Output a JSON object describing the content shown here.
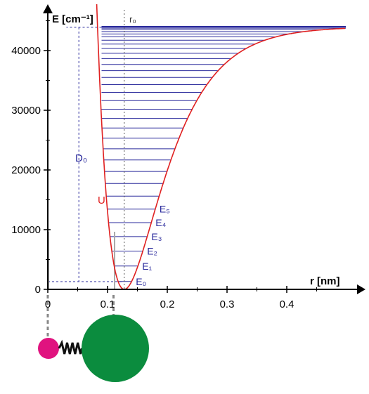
{
  "chart_data": {
    "type": "line",
    "title": "",
    "xlabel": "r [nm]",
    "ylabel": "E [cm⁻¹]",
    "xlim": [
      0,
      0.52
    ],
    "ylim": [
      0,
      46000
    ],
    "xticks": [
      {
        "value": 0,
        "label": "0"
      },
      {
        "value": 0.1,
        "label": "0.1"
      },
      {
        "value": 0.2,
        "label": "0.2"
      },
      {
        "value": 0.3,
        "label": "0.3"
      },
      {
        "value": 0.4,
        "label": "0.4"
      }
    ],
    "yticks": [
      {
        "value": 0,
        "label": "0"
      },
      {
        "value": 10000,
        "label": "10000"
      },
      {
        "value": 20000,
        "label": "20000"
      },
      {
        "value": 30000,
        "label": "30000"
      },
      {
        "value": 40000,
        "label": "40000"
      }
    ],
    "potential": {
      "name": "U",
      "color": "#e02020",
      "r_e": 0.128,
      "well_depth": 44000,
      "beta": 15.5
    },
    "levels_count": 33,
    "level_color": "#2a2a9c",
    "level_labels": [
      "E₀",
      "E₁",
      "E₂",
      "E₃",
      "E₄",
      "E₅"
    ],
    "annotations": {
      "D0": "D₀",
      "r0": "r₀",
      "D0_low": 1300,
      "D0_high": 43900,
      "D0_x": 0.052
    },
    "grid": false,
    "molecule": {
      "small_atom_color": "#e0137f",
      "large_atom_color": "#0b8c3e",
      "spring_color": "#111111"
    }
  }
}
